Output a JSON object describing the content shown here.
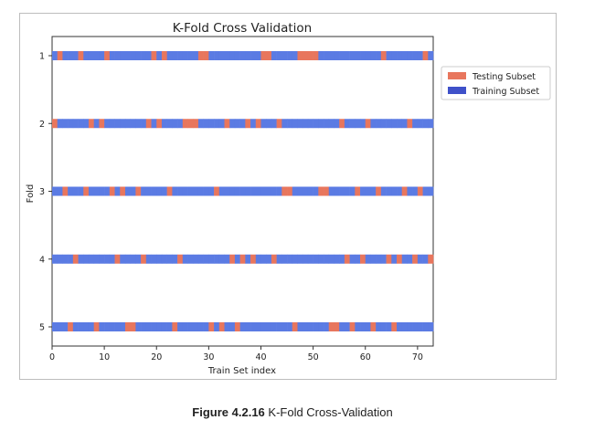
{
  "chart_data": {
    "type": "bar",
    "title": "K-Fold Cross Validation",
    "xlabel": "Train Set index",
    "ylabel": "Fold",
    "xlim": [
      0,
      73
    ],
    "xticks": [
      0,
      10,
      20,
      30,
      40,
      50,
      60,
      70
    ],
    "categories": [
      "1",
      "2",
      "3",
      "4",
      "5"
    ],
    "n_samples": 73,
    "legend": {
      "placement": "right",
      "entries": [
        "Testing Subset",
        "Training Subset"
      ]
    },
    "colors": {
      "testing": "#e8765d",
      "training": "#5b7be3",
      "legend_training": "#3f51c9"
    },
    "series": [
      {
        "name": "Testing Subset",
        "fold": "1",
        "test_indices": [
          1,
          5,
          10,
          19,
          21,
          28,
          29,
          40,
          41,
          47,
          48,
          49,
          50,
          63,
          71
        ]
      },
      {
        "name": "Testing Subset",
        "fold": "2",
        "test_indices": [
          0,
          7,
          9,
          18,
          20,
          25,
          26,
          27,
          33,
          37,
          39,
          43,
          55,
          60,
          68
        ]
      },
      {
        "name": "Testing Subset",
        "fold": "3",
        "test_indices": [
          2,
          6,
          11,
          13,
          16,
          22,
          31,
          44,
          45,
          51,
          52,
          58,
          62,
          67,
          70
        ]
      },
      {
        "name": "Testing Subset",
        "fold": "4",
        "test_indices": [
          4,
          12,
          17,
          24,
          34,
          36,
          38,
          42,
          56,
          59,
          64,
          66,
          69,
          72
        ]
      },
      {
        "name": "Testing Subset",
        "fold": "5",
        "test_indices": [
          3,
          8,
          14,
          15,
          23,
          30,
          32,
          35,
          46,
          53,
          54,
          57,
          61,
          65
        ]
      }
    ]
  },
  "caption": {
    "label": "Figure 4.2.16",
    "text": " K-Fold Cross-Validation"
  }
}
